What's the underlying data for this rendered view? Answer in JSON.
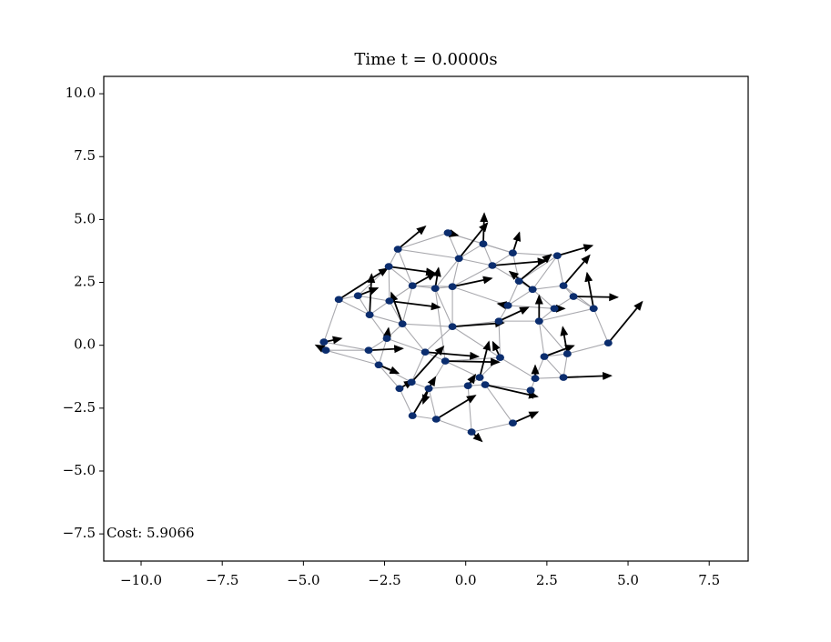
{
  "chart_data": {
    "type": "quiver-network",
    "title": "Time t = 0.0000s",
    "annotation": "Cost: 5.9066",
    "xlim": [
      -11.15,
      8.7
    ],
    "ylim": [
      -8.58,
      10.69
    ],
    "xticks": [
      {
        "value": -10,
        "label": "−10.0"
      },
      {
        "value": -7.5,
        "label": "−7.5"
      },
      {
        "value": -5,
        "label": "−5.0"
      },
      {
        "value": -2.5,
        "label": "−2.5"
      },
      {
        "value": 0,
        "label": "0.0"
      },
      2.5,
      {
        "value": 5,
        "label": "5.0"
      },
      7.5
    ],
    "yticks": [
      {
        "value": -7.5,
        "label": "−7.5"
      },
      {
        "value": -5,
        "label": "−5.0"
      },
      {
        "value": -2.5,
        "label": "−2.5"
      },
      {
        "value": 0,
        "label": "0.0"
      },
      2.5,
      {
        "value": 5,
        "label": "5.0"
      },
      7.5,
      {
        "value": 10,
        "label": "10.0"
      }
    ],
    "node_color": "#0b2d6e",
    "edge_color": "#a9a9ae",
    "arrow_color": "#000000",
    "x": [
      -0.55,
      -2.09,
      0.54,
      1.45,
      2.82,
      -0.21,
      -2.37,
      0.82,
      1.64,
      -1.64,
      -0.94,
      -0.41,
      2.06,
      3.01,
      3.32,
      -3.91,
      -3.32,
      -2.35,
      1.3,
      2.73,
      3.94,
      -2.96,
      -1.95,
      1.02,
      2.26,
      -0.41,
      -2.43,
      -4.37,
      4.39,
      -4.31,
      -2.99,
      -1.25,
      3.13,
      2.42,
      -0.63,
      1.06,
      -2.68,
      0.43,
      2.14,
      3.01,
      -1.67,
      -2.04,
      -1.14,
      0.07,
      0.6,
      2.0,
      -1.64,
      -0.91,
      1.45,
      0.18
    ],
    "y": [
      4.47,
      3.82,
      4.03,
      3.67,
      3.56,
      3.45,
      3.13,
      3.17,
      2.55,
      2.37,
      2.26,
      2.33,
      2.22,
      2.37,
      1.94,
      1.82,
      1.97,
      1.76,
      1.58,
      1.46,
      1.46,
      1.21,
      0.85,
      0.96,
      0.96,
      0.74,
      0.27,
      0.13,
      0.09,
      -0.2,
      -0.2,
      -0.27,
      -0.34,
      -0.45,
      -0.63,
      -0.49,
      -0.78,
      -1.28,
      -1.32,
      -1.28,
      -1.47,
      -1.72,
      -1.72,
      -1.61,
      -1.57,
      -1.79,
      -2.8,
      -2.94,
      -3.09,
      -3.45
    ],
    "u": [
      0.3,
      0.84,
      0.03,
      0.2,
      1.07,
      0.87,
      1.4,
      1.65,
      0.98,
      0.7,
      0.1,
      1.2,
      -0.7,
      0.8,
      1.35,
      1.49,
      0.6,
      1.54,
      -0.3,
      0.3,
      -0.2,
      0.06,
      -0.34,
      0.9,
      0,
      1.57,
      0.05,
      0.53,
      1.04,
      -0.3,
      1.04,
      1.63,
      -0.14,
      0.9,
      1.65,
      -0.22,
      0.6,
      0.28,
      0,
      1.46,
      0.98,
      0.4,
      -0.17,
      0.22,
      1.6,
      0.06,
      0.7,
      1.2,
      0.76,
      0.31
    ],
    "v": [
      -0.1,
      0.9,
      1.2,
      0.8,
      0.4,
      1.4,
      -0.25,
      0.18,
      1.05,
      0.5,
      0.8,
      0.33,
      0.7,
      1.2,
      -0.03,
      1.23,
      0.3,
      -0.25,
      0.07,
      0,
      1.4,
      1.6,
      1.23,
      0.54,
      1.0,
      0.15,
      0.4,
      0.14,
      1.63,
      0.2,
      0.07,
      -0.18,
      1.05,
      0.43,
      -0.04,
      0.61,
      -0.33,
      1.41,
      0.5,
      0.07,
      1.41,
      0.3,
      -0.58,
      0.43,
      -0.47,
      -0.29,
      1.52,
      0.94,
      0.43,
      -0.36
    ],
    "edges": [
      [
        0,
        1
      ],
      [
        0,
        2
      ],
      [
        0,
        5
      ],
      [
        0,
        3
      ],
      [
        1,
        6
      ],
      [
        1,
        5
      ],
      [
        1,
        9
      ],
      [
        2,
        3
      ],
      [
        2,
        5
      ],
      [
        2,
        7
      ],
      [
        3,
        4
      ],
      [
        3,
        7
      ],
      [
        3,
        8
      ],
      [
        4,
        8
      ],
      [
        4,
        13
      ],
      [
        4,
        12
      ],
      [
        5,
        7
      ],
      [
        5,
        11
      ],
      [
        5,
        10
      ],
      [
        6,
        9
      ],
      [
        6,
        17
      ],
      [
        6,
        16
      ],
      [
        7,
        8
      ],
      [
        7,
        11
      ],
      [
        8,
        12
      ],
      [
        8,
        18
      ],
      [
        9,
        10
      ],
      [
        9,
        11
      ],
      [
        9,
        17
      ],
      [
        9,
        22
      ],
      [
        10,
        11
      ],
      [
        10,
        25
      ],
      [
        11,
        18
      ],
      [
        11,
        25
      ],
      [
        12,
        13
      ],
      [
        12,
        18
      ],
      [
        12,
        19
      ],
      [
        13,
        14
      ],
      [
        13,
        20
      ],
      [
        14,
        19
      ],
      [
        14,
        20
      ],
      [
        15,
        16
      ],
      [
        15,
        21
      ],
      [
        15,
        27
      ],
      [
        16,
        17
      ],
      [
        16,
        21
      ],
      [
        17,
        21
      ],
      [
        17,
        22
      ],
      [
        18,
        23
      ],
      [
        18,
        19
      ],
      [
        19,
        24
      ],
      [
        20,
        28
      ],
      [
        20,
        24
      ],
      [
        21,
        26
      ],
      [
        21,
        22
      ],
      [
        22,
        25
      ],
      [
        22,
        26
      ],
      [
        23,
        24
      ],
      [
        23,
        25
      ],
      [
        23,
        35
      ],
      [
        24,
        32
      ],
      [
        24,
        33
      ],
      [
        25,
        31
      ],
      [
        25,
        35
      ],
      [
        26,
        30
      ],
      [
        26,
        31
      ],
      [
        26,
        36
      ],
      [
        27,
        29
      ],
      [
        27,
        30
      ],
      [
        29,
        30
      ],
      [
        29,
        36
      ],
      [
        30,
        36
      ],
      [
        31,
        34
      ],
      [
        31,
        40
      ],
      [
        32,
        28
      ],
      [
        32,
        33
      ],
      [
        33,
        38
      ],
      [
        33,
        39
      ],
      [
        32,
        39
      ],
      [
        34,
        35
      ],
      [
        34,
        37
      ],
      [
        34,
        42
      ],
      [
        35,
        37
      ],
      [
        35,
        38
      ],
      [
        36,
        40
      ],
      [
        36,
        41
      ],
      [
        37,
        43
      ],
      [
        37,
        44
      ],
      [
        38,
        45
      ],
      [
        38,
        39
      ],
      [
        40,
        41
      ],
      [
        40,
        42
      ],
      [
        41,
        46
      ],
      [
        42,
        43
      ],
      [
        42,
        47
      ],
      [
        43,
        44
      ],
      [
        43,
        49
      ],
      [
        44,
        45
      ],
      [
        44,
        48
      ],
      [
        46,
        47
      ],
      [
        47,
        49
      ],
      [
        48,
        49
      ],
      [
        22,
        31
      ],
      [
        10,
        34
      ]
    ]
  }
}
